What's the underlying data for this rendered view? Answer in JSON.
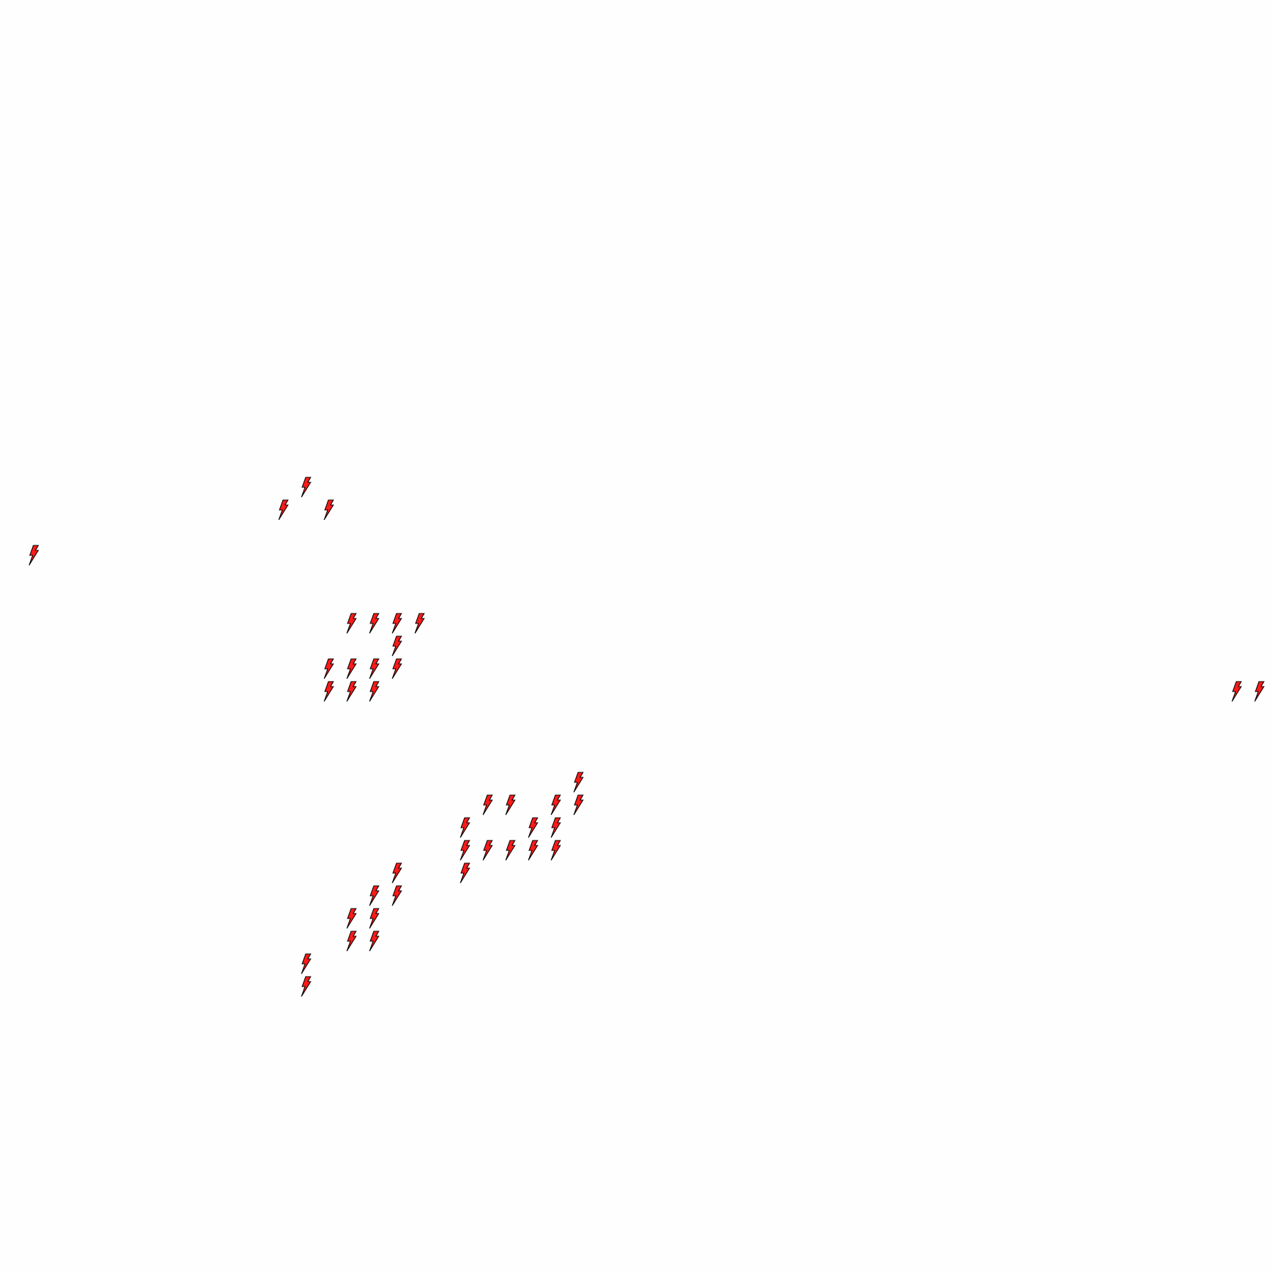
{
  "map": {
    "marker_icon": "lightning-bolt-icon",
    "marker_fill": "#ff1a1a",
    "marker_stroke": "#000000",
    "background": "#fefefe",
    "marker_count": 43
  }
}
